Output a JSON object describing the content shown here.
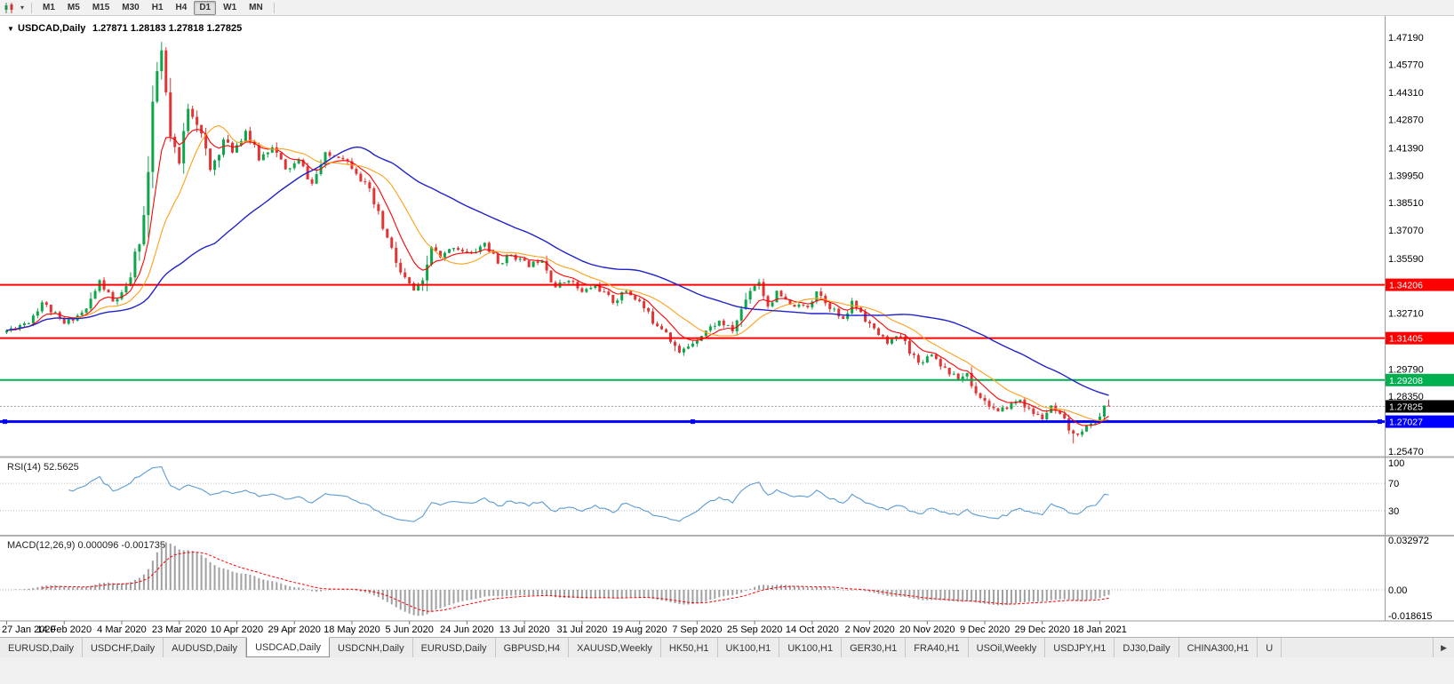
{
  "toolbar": {
    "timeframes": [
      "M1",
      "M5",
      "M15",
      "M30",
      "H1",
      "H4",
      "D1",
      "W1",
      "MN"
    ],
    "active_timeframe": "D1"
  },
  "icons": {
    "chart_type": "candlestick-chart",
    "toolbar_caret": "▾",
    "symbol_caret": "▼",
    "tab_scroll_right": "▶"
  },
  "chart_data": {
    "type": "candlestick",
    "symbol": "USDCAD",
    "period": "Daily",
    "title_symbol": "USDCAD,Daily",
    "ohlc_text": "1.27871 1.28183 1.27818 1.27825",
    "last_candle": {
      "open": 1.27871,
      "high": 1.28183,
      "low": 1.27818,
      "close": 1.27825
    },
    "candle_count": 250,
    "seed": 11,
    "price_axis": {
      "min": 1.2547,
      "max": 1.4719,
      "labels": [
        "1.47190",
        "1.45770",
        "1.44310",
        "1.42870",
        "1.41390",
        "1.39950",
        "1.38510",
        "1.37070",
        "1.35590",
        "1.32710",
        "1.29790",
        "1.28350",
        "1.25470"
      ]
    },
    "close_anchors": [
      [
        0,
        1.318
      ],
      [
        5,
        1.323
      ],
      [
        8,
        1.333
      ],
      [
        13,
        1.3215
      ],
      [
        18,
        1.329
      ],
      [
        21,
        1.344
      ],
      [
        24,
        1.333
      ],
      [
        27,
        1.339
      ],
      [
        29,
        1.356
      ],
      [
        31,
        1.378
      ],
      [
        32,
        1.4
      ],
      [
        33,
        1.428
      ],
      [
        34,
        1.453
      ],
      [
        35,
        1.464
      ],
      [
        36,
        1.439
      ],
      [
        37,
        1.418
      ],
      [
        39,
        1.405
      ],
      [
        41,
        1.436
      ],
      [
        43,
        1.428
      ],
      [
        46,
        1.402
      ],
      [
        49,
        1.418
      ],
      [
        51,
        1.412
      ],
      [
        54,
        1.423
      ],
      [
        57,
        1.408
      ],
      [
        60,
        1.415
      ],
      [
        63,
        1.402
      ],
      [
        66,
        1.407
      ],
      [
        69,
        1.395
      ],
      [
        72,
        1.41
      ],
      [
        76,
        1.409
      ],
      [
        79,
        1.402
      ],
      [
        82,
        1.39
      ],
      [
        84,
        1.378
      ],
      [
        87,
        1.36
      ],
      [
        89,
        1.348
      ],
      [
        92,
        1.339
      ],
      [
        94,
        1.342
      ],
      [
        96,
        1.362
      ],
      [
        98,
        1.356
      ],
      [
        101,
        1.362
      ],
      [
        105,
        1.358
      ],
      [
        108,
        1.364
      ],
      [
        111,
        1.353
      ],
      [
        114,
        1.358
      ],
      [
        118,
        1.352
      ],
      [
        121,
        1.356
      ],
      [
        124,
        1.341
      ],
      [
        127,
        1.345
      ],
      [
        130,
        1.338
      ],
      [
        133,
        1.342
      ],
      [
        137,
        1.333
      ],
      [
        140,
        1.339
      ],
      [
        143,
        1.333
      ],
      [
        146,
        1.323
      ],
      [
        149,
        1.318
      ],
      [
        152,
        1.306
      ],
      [
        155,
        1.312
      ],
      [
        158,
        1.318
      ],
      [
        161,
        1.323
      ],
      [
        164,
        1.318
      ],
      [
        168,
        1.34
      ],
      [
        170,
        1.344
      ],
      [
        172,
        1.331
      ],
      [
        174,
        1.338
      ],
      [
        177,
        1.331
      ],
      [
        181,
        1.331
      ],
      [
        183,
        1.339
      ],
      [
        186,
        1.331
      ],
      [
        189,
        1.323
      ],
      [
        191,
        1.333
      ],
      [
        193,
        1.328
      ],
      [
        196,
        1.318
      ],
      [
        199,
        1.312
      ],
      [
        202,
        1.315
      ],
      [
        206,
        1.301
      ],
      [
        209,
        1.306
      ],
      [
        212,
        1.298
      ],
      [
        215,
        1.292
      ],
      [
        217,
        1.296
      ],
      [
        218,
        1.289
      ],
      [
        221,
        1.281
      ],
      [
        224,
        1.275
      ],
      [
        226,
        1.278
      ],
      [
        229,
        1.282
      ],
      [
        231,
        1.276
      ],
      [
        234,
        1.272
      ],
      [
        236,
        1.278
      ],
      [
        239,
        1.27
      ],
      [
        241,
        1.263
      ],
      [
        243,
        1.266
      ],
      [
        246,
        1.27
      ],
      [
        248,
        1.277
      ],
      [
        249,
        1.27825
      ]
    ],
    "extremes": {
      "high": 1.4695,
      "high_index": 35,
      "low": 1.2588,
      "low_index": 241
    },
    "hlines": [
      {
        "label": "1.34206",
        "value": 1.34206,
        "color": "#ff0000",
        "width": 2
      },
      {
        "label": "1.31405",
        "value": 1.31405,
        "color": "#ff0000",
        "width": 2
      },
      {
        "label": "1.29208",
        "value": 1.29208,
        "color": "#00b050",
        "width": 2
      },
      {
        "label": "1.27027",
        "value": 1.27027,
        "color": "#0000ff",
        "width": 3,
        "selected": true
      }
    ],
    "bid_line": {
      "label": "1.27825",
      "value": 1.27825,
      "color": "#000000"
    },
    "candle_colors": {
      "up": "#0ea64a",
      "down": "#e23434"
    },
    "moving_averages": [
      {
        "name": "fast",
        "color": "#ff0000",
        "period": 8,
        "method": "ema"
      },
      {
        "name": "mid",
        "color": "#ff9f1a",
        "period": 16,
        "method": "sma"
      },
      {
        "name": "slow",
        "color": "#2222cc",
        "period": 48,
        "method": "sma"
      }
    ],
    "rsi": {
      "title": "RSI(14) 52.5625",
      "period": 14,
      "value": 52.5625,
      "levels": [
        70,
        30
      ],
      "axis_labels": [
        "100",
        "70",
        "30"
      ],
      "axis_values": [
        100,
        70,
        30
      ],
      "color": "#5b9bd5"
    },
    "macd": {
      "title": "MACD(12,26,9) 0.000096 -0.001735",
      "value": 9.6e-05,
      "signal_value": -0.001735,
      "axis_labels": [
        "0.032972",
        "0.00",
        "-0.018615"
      ],
      "axis_values": [
        0.032972,
        0,
        -0.018615
      ],
      "histogram_color": "#a0a0a0",
      "signal_color": "#ff0000",
      "scale_max": 0.0315
    },
    "time_axis": {
      "labels": [
        "27 Jan 2020",
        "14 Feb 2020",
        "4 Mar 2020",
        "23 Mar 2020",
        "10 Apr 2020",
        "29 Apr 2020",
        "18 May 2020",
        "5 Jun 2020",
        "24 Jun 2020",
        "13 Jul 2020",
        "31 Jul 2020",
        "19 Aug 2020",
        "7 Sep 2020",
        "25 Sep 2020",
        "14 Oct 2020",
        "2 Nov 2020",
        "20 Nov 2020",
        "9 Dec 2020",
        "29 Dec 2020",
        "18 Jan 2021"
      ],
      "label_step": 13
    }
  },
  "tabs": {
    "items": [
      "EURUSD,Daily",
      "USDCHF,Daily",
      "AUDUSD,Daily",
      "USDCAD,Daily",
      "USDCNH,Daily",
      "EURUSD,Daily",
      "GBPUSD,H4",
      "XAUUSD,Weekly",
      "HK50,H1",
      "UK100,H1",
      "UK100,H1",
      "GER30,H1",
      "FRA40,H1",
      "USOil,Weekly",
      "USDJPY,H1",
      "DJ30,Daily",
      "CHINA300,H1",
      "U"
    ],
    "active_index": 3
  }
}
